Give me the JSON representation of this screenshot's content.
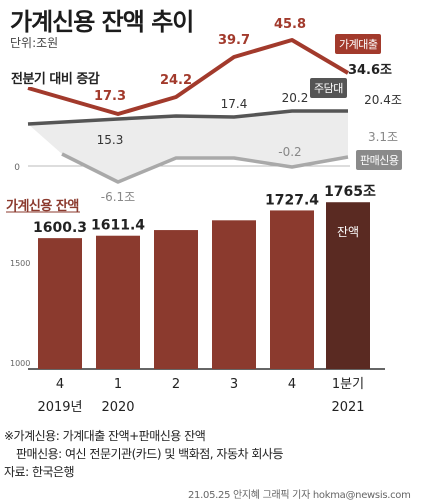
{
  "title": "가계신용 잔액 추이",
  "unit": "단위:조원",
  "quarterly_label": "전분기 대비 증감",
  "balance_label": "가계신용 잔액",
  "tags": {
    "household": "가계대출",
    "mortgage": "주담대",
    "sales": "판매신용",
    "balance": "잔액"
  },
  "footnote": {
    "line1": "※가계신용: 가계대출 잔액+판매신용 잔액",
    "line2": "판매신용: 여신 전문기관(카드) 및 백화점, 자동차 회사등",
    "line3": "자료: 한국은행"
  },
  "credit": "21.05.25 안지혜 그래픽 기자 hokma@newsis.com",
  "colors": {
    "household": "#a23a2c",
    "mortgage": "#555555",
    "sales": "#8a8a8a",
    "bar": "#8b3a2e",
    "bar_last": "#5a2a22"
  },
  "chart_data": [
    {
      "type": "line",
      "title": "전분기 대비 증감",
      "categories": [
        "4",
        "1",
        "2",
        "3",
        "4",
        "1분기"
      ],
      "series": [
        {
          "name": "가계대출",
          "values": [
            null,
            17.3,
            24.2,
            39.7,
            45.8,
            34.6
          ],
          "labels": [
            "",
            "17.3",
            "24.2",
            "39.7",
            "45.8",
            "34.6조"
          ]
        },
        {
          "name": "주담대",
          "values": [
            null,
            15.3,
            null,
            17.4,
            20.2,
            20.4
          ],
          "labels": [
            "",
            "15.3",
            "",
            "17.4",
            "20.2",
            "20.4조"
          ]
        },
        {
          "name": "판매신용",
          "values": [
            null,
            -6.1,
            null,
            null,
            -0.2,
            3.1
          ],
          "labels": [
            "",
            "-6.1조",
            "",
            "",
            "-0.2",
            "3.1조"
          ]
        }
      ],
      "y_ticks": [
        "0"
      ],
      "shaded_band": "between 주담대 and 판매신용"
    },
    {
      "type": "bar",
      "title": "가계신용 잔액",
      "categories": [
        "4",
        "1",
        "2",
        "3",
        "4",
        "1분기"
      ],
      "year_labels": [
        "2019년",
        "2020",
        "",
        "",
        "",
        "2021"
      ],
      "values": [
        1600.3,
        1611.4,
        1637.3,
        1682.1,
        1727.4,
        1765.0
      ],
      "data_labels": [
        "1600.3",
        "1611.4",
        "",
        "",
        "1727.4",
        "1765조"
      ],
      "y_ticks": [
        "1500",
        "1000"
      ]
    }
  ]
}
